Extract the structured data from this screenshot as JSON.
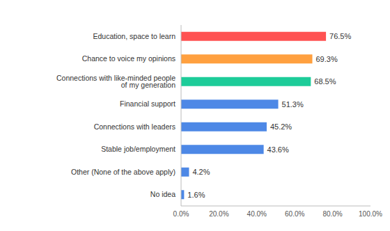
{
  "chart_data": {
    "type": "bar",
    "orientation": "horizontal",
    "categories": [
      "Education, space to learn",
      "Chance to voice my opinions",
      "Connections with like-minded people of my generation",
      "Financial support",
      "Connections with leaders",
      "Stable job/employment",
      "Other (None of the above apply)",
      "No idea"
    ],
    "values": [
      76.5,
      69.3,
      68.5,
      51.3,
      45.2,
      43.6,
      4.2,
      1.6
    ],
    "value_labels": [
      "76.5%",
      "69.3%",
      "68.5%",
      "51.3%",
      "45.2%",
      "43.6%",
      "4.2%",
      "1.6%"
    ],
    "data_labels": true,
    "colors": [
      "#ff5252",
      "#ffa03f",
      "#1dcc99",
      "#4d88e6",
      "#4d88e6",
      "#4d88e6",
      "#4d88e6",
      "#4d88e6"
    ],
    "xlim": [
      0,
      100
    ],
    "xticks": [
      {
        "value": 0,
        "label": "0.0%"
      },
      {
        "value": 20,
        "label": "20.0%"
      },
      {
        "value": 40,
        "label": "40.0%"
      },
      {
        "value": 60,
        "label": "60.0%"
      },
      {
        "value": 80,
        "label": "80.0%"
      },
      {
        "value": 100,
        "label": "100.0%"
      }
    ],
    "grid": false
  }
}
